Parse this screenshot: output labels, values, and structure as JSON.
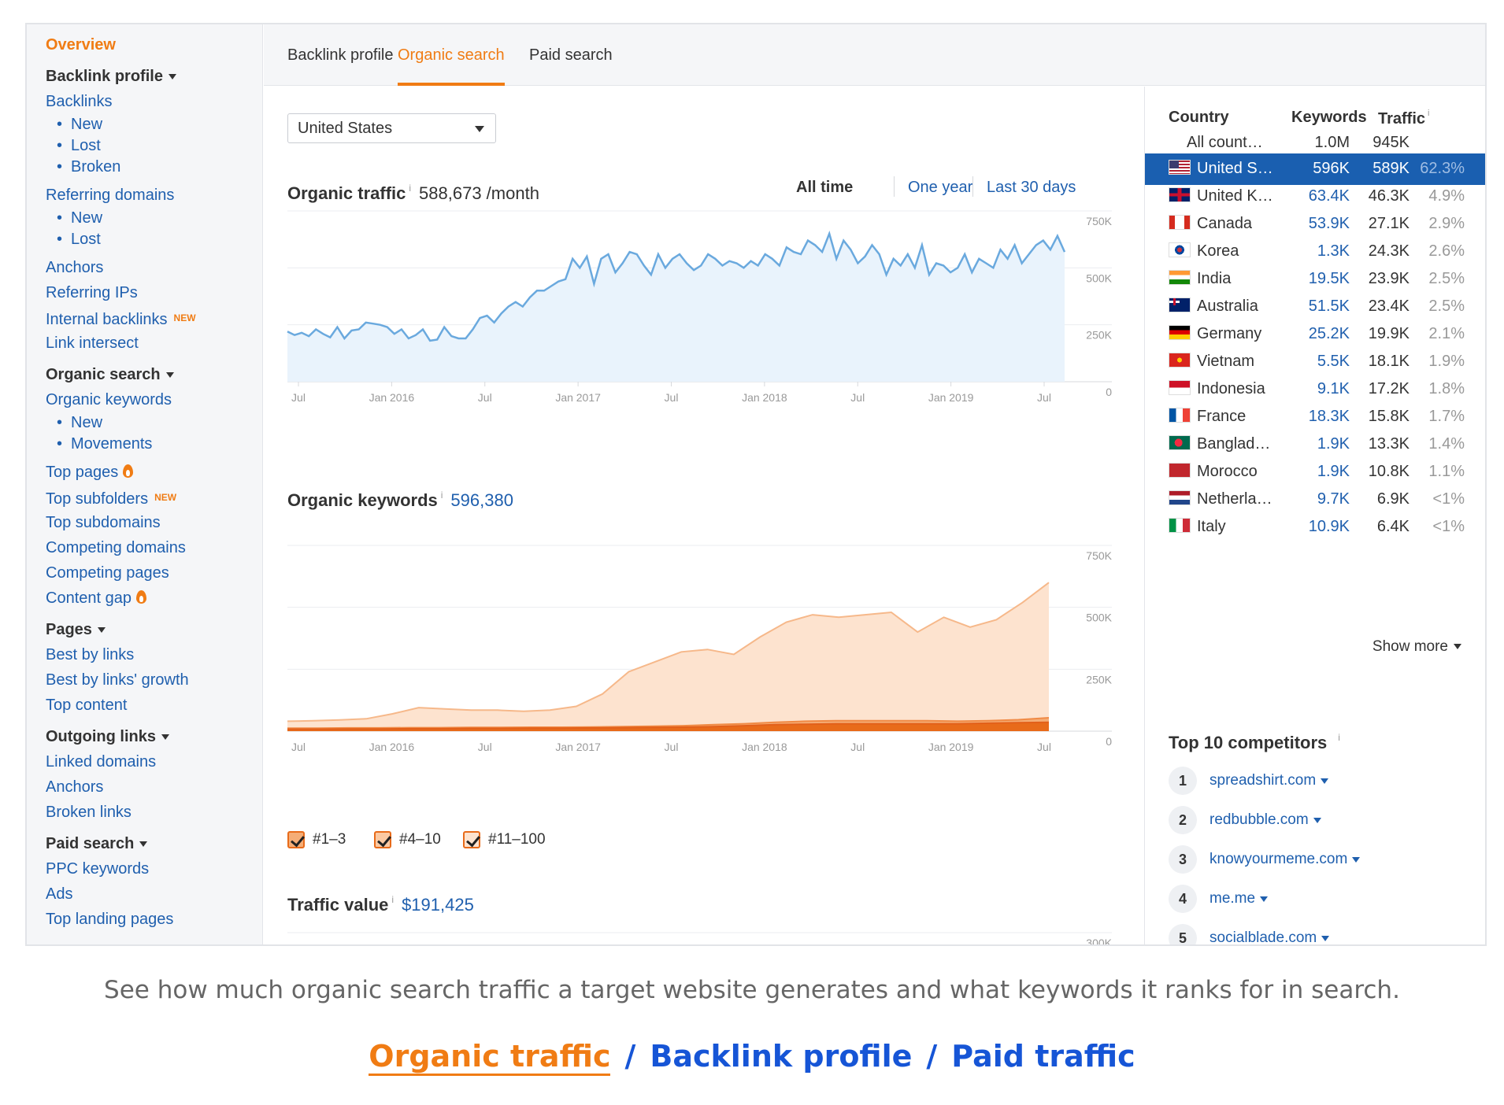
{
  "sidebar": {
    "overview": "Overview",
    "groups": [
      {
        "heading": "Backlink profile",
        "items": [
          {
            "label": "Backlinks",
            "sub": false
          },
          {
            "label": "New",
            "sub": true
          },
          {
            "label": "Lost",
            "sub": true
          },
          {
            "label": "Broken",
            "sub": true
          },
          {
            "label": "Referring domains",
            "sub": false,
            "gap": true
          },
          {
            "label": "New",
            "sub": true
          },
          {
            "label": "Lost",
            "sub": true
          },
          {
            "label": "Anchors",
            "sub": false,
            "gap": true
          },
          {
            "label": "Referring IPs",
            "sub": false
          },
          {
            "label": "Internal backlinks",
            "sub": false,
            "badge": "NEW"
          },
          {
            "label": "Link intersect",
            "sub": false
          }
        ]
      },
      {
        "heading": "Organic search",
        "items": [
          {
            "label": "Organic keywords",
            "sub": false
          },
          {
            "label": "New",
            "sub": true
          },
          {
            "label": "Movements",
            "sub": true
          },
          {
            "label": "Top pages",
            "sub": false,
            "gap": true,
            "icon": "fire-icon"
          },
          {
            "label": "Top subfolders",
            "sub": false,
            "badge": "NEW"
          },
          {
            "label": "Top subdomains",
            "sub": false
          },
          {
            "label": "Competing domains",
            "sub": false
          },
          {
            "label": "Competing pages",
            "sub": false
          },
          {
            "label": "Content gap",
            "sub": false,
            "icon": "fire-icon"
          }
        ]
      },
      {
        "heading": "Pages",
        "items": [
          {
            "label": "Best by links",
            "sub": false
          },
          {
            "label": "Best by links' growth",
            "sub": false
          },
          {
            "label": "Top content",
            "sub": false
          }
        ]
      },
      {
        "heading": "Outgoing links",
        "items": [
          {
            "label": "Linked domains",
            "sub": false
          },
          {
            "label": "Anchors",
            "sub": false
          },
          {
            "label": "Broken links",
            "sub": false
          }
        ]
      },
      {
        "heading": "Paid search",
        "items": [
          {
            "label": "PPC keywords",
            "sub": false
          },
          {
            "label": "Ads",
            "sub": false
          },
          {
            "label": "Top landing pages",
            "sub": false
          }
        ]
      }
    ]
  },
  "tabs": [
    "Backlink profile",
    "Organic search",
    "Paid search"
  ],
  "active_tab": "Organic search",
  "country_select": "United States",
  "organic_traffic": {
    "label": "Organic traffic",
    "info": "i",
    "value": "588,673 /month"
  },
  "ranges": [
    "All time",
    "One year",
    "Last 30 days"
  ],
  "organic_keywords": {
    "label": "Organic keywords",
    "info": "i",
    "value": "596,380"
  },
  "traffic_value": {
    "label": "Traffic value",
    "info": "i",
    "value": "$191,425"
  },
  "legend": [
    "#1–3",
    "#4–10",
    "#11–100"
  ],
  "colors": {
    "accent": "#f07c14",
    "link": "#1f5fae",
    "selected_row": "#1a5fb0",
    "traffic_line": "#6aa9de",
    "traffic_fill": "#e9f3fc",
    "band1": "#e86b1a",
    "band2": "#f5ad76",
    "band3": "#fde3cf"
  },
  "chart_data": [
    {
      "type": "area",
      "title": "Organic traffic",
      "x_ticks": [
        "Jul",
        "Jan 2016",
        "Jul",
        "Jan 2017",
        "Jul",
        "Jan 2018",
        "Jul",
        "Jan 2019",
        "Jul"
      ],
      "y_ticks": [
        "750K",
        "500K",
        "250K",
        "0"
      ],
      "ylim": [
        0,
        750000
      ],
      "series": [
        {
          "values": [
            220000,
            205000,
            215000,
            200000,
            230000,
            210000,
            195000,
            240000,
            190000,
            225000,
            230000,
            260000,
            255000,
            250000,
            240000,
            210000,
            230000,
            190000,
            205000,
            230000,
            180000,
            185000,
            240000,
            200000,
            190000,
            190000,
            230000,
            280000,
            290000,
            260000,
            300000,
            330000,
            350000,
            330000,
            370000,
            400000,
            400000,
            420000,
            440000,
            450000,
            540000,
            500000,
            550000,
            430000,
            540000,
            560000,
            480000,
            520000,
            570000,
            560000,
            510000,
            470000,
            560000,
            500000,
            540000,
            560000,
            520000,
            490000,
            510000,
            560000,
            540000,
            510000,
            530000,
            520000,
            500000,
            530000,
            510000,
            560000,
            540000,
            510000,
            590000,
            570000,
            560000,
            620000,
            600000,
            570000,
            650000,
            540000,
            620000,
            580000,
            520000,
            550000,
            600000,
            560000,
            470000,
            540000,
            510000,
            560000,
            500000,
            600000,
            470000,
            520000,
            510000,
            480000,
            500000,
            560000,
            480000,
            540000,
            520000,
            500000,
            580000,
            540000,
            600000,
            520000,
            560000,
            600000,
            620000,
            580000,
            640000,
            570000
          ]
        }
      ]
    },
    {
      "type": "area",
      "title": "Organic keywords",
      "x_ticks": [
        "Jul",
        "Jan 2016",
        "Jul",
        "Jan 2017",
        "Jul",
        "Jan 2018",
        "Jul",
        "Jan 2019",
        "Jul"
      ],
      "y_ticks": [
        "750K",
        "500K",
        "250K",
        "0"
      ],
      "ylim": [
        0,
        750000
      ],
      "series": [
        {
          "name": "#1–3",
          "values": [
            8000,
            8000,
            9000,
            9000,
            10000,
            10000,
            11000,
            11000,
            12000,
            12000,
            13000,
            14000,
            15000,
            16000,
            18000,
            22000,
            26000,
            28000,
            30000,
            30000,
            30000,
            30000,
            30000,
            32000,
            34000,
            36000
          ]
        },
        {
          "name": "#4–10",
          "values": [
            12000,
            12000,
            13000,
            13000,
            14000,
            14000,
            15000,
            15000,
            16000,
            16000,
            17000,
            18000,
            20000,
            22000,
            26000,
            30000,
            36000,
            40000,
            42000,
            42000,
            42000,
            42000,
            40000,
            42000,
            46000,
            54000
          ]
        },
        {
          "name": "#11–100",
          "values": [
            40000,
            42000,
            45000,
            50000,
            70000,
            95000,
            90000,
            85000,
            85000,
            80000,
            85000,
            100000,
            150000,
            240000,
            280000,
            320000,
            330000,
            310000,
            380000,
            440000,
            470000,
            460000,
            470000,
            480000,
            400000,
            460000,
            420000,
            450000,
            520000,
            600000
          ]
        }
      ]
    },
    {
      "type": "area",
      "title": "Traffic value",
      "y_ticks": [
        "300K"
      ]
    }
  ],
  "country_table": {
    "headers": {
      "country": "Country",
      "keywords": "Keywords",
      "traffic": "Traffic",
      "info": "i"
    },
    "rows": [
      {
        "flag": "none",
        "name": "All count…",
        "keywords": "1.0M",
        "traffic": "945K",
        "share": ""
      },
      {
        "flag": "us",
        "name": "United S…",
        "keywords": "596K",
        "traffic": "589K",
        "share": "62.3%",
        "selected": true
      },
      {
        "flag": "uk",
        "name": "United K…",
        "keywords": "63.4K",
        "traffic": "46.3K",
        "share": "4.9%"
      },
      {
        "flag": "ca",
        "name": "Canada",
        "keywords": "53.9K",
        "traffic": "27.1K",
        "share": "2.9%"
      },
      {
        "flag": "kr",
        "name": "Korea",
        "keywords": "1.3K",
        "traffic": "24.3K",
        "share": "2.6%"
      },
      {
        "flag": "in",
        "name": "India",
        "keywords": "19.5K",
        "traffic": "23.9K",
        "share": "2.5%"
      },
      {
        "flag": "au",
        "name": "Australia",
        "keywords": "51.5K",
        "traffic": "23.4K",
        "share": "2.5%"
      },
      {
        "flag": "de",
        "name": "Germany",
        "keywords": "25.2K",
        "traffic": "19.9K",
        "share": "2.1%"
      },
      {
        "flag": "vn",
        "name": "Vietnam",
        "keywords": "5.5K",
        "traffic": "18.1K",
        "share": "1.9%"
      },
      {
        "flag": "id",
        "name": "Indonesia",
        "keywords": "9.1K",
        "traffic": "17.2K",
        "share": "1.8%"
      },
      {
        "flag": "fr",
        "name": "France",
        "keywords": "18.3K",
        "traffic": "15.8K",
        "share": "1.7%"
      },
      {
        "flag": "bd",
        "name": "Banglad…",
        "keywords": "1.9K",
        "traffic": "13.3K",
        "share": "1.4%"
      },
      {
        "flag": "ma",
        "name": "Morocco",
        "keywords": "1.9K",
        "traffic": "10.8K",
        "share": "1.1%"
      },
      {
        "flag": "nl",
        "name": "Netherla…",
        "keywords": "9.7K",
        "traffic": "6.9K",
        "share": "<1%"
      },
      {
        "flag": "it",
        "name": "Italy",
        "keywords": "10.9K",
        "traffic": "6.4K",
        "share": "<1%"
      }
    ],
    "show_more": "Show more"
  },
  "competitors": {
    "title": "Top 10 competitors",
    "info": "i",
    "items": [
      {
        "rank": "1",
        "domain": "spreadshirt.com"
      },
      {
        "rank": "2",
        "domain": "redbubble.com"
      },
      {
        "rank": "3",
        "domain": "knowyourmeme.com"
      },
      {
        "rank": "4",
        "domain": "me.me"
      },
      {
        "rank": "5",
        "domain": "socialblade.com"
      }
    ]
  },
  "caption": "See how much organic search traffic a target website generates and what keywords it ranks for in search.",
  "bottom_nav": {
    "active": "Organic traffic",
    "items": [
      "Backlink profile",
      "Paid traffic"
    ],
    "separator": "/"
  }
}
